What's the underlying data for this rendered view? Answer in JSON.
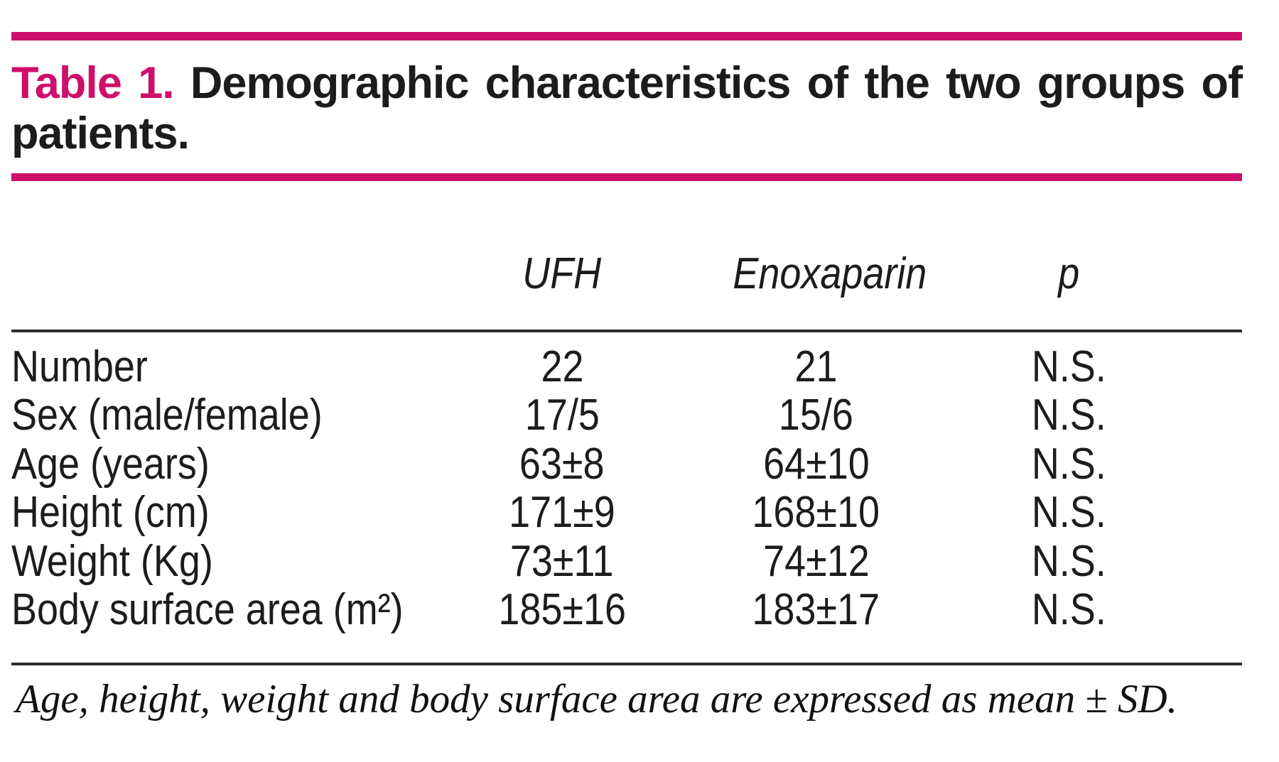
{
  "colors": {
    "accent": "#ce0f69",
    "text": "#1c1c1c",
    "rule": "#2d2d2d",
    "background": "#ffffff"
  },
  "caption": {
    "number_label": "Table 1.",
    "line1_text": "Demographic characteristics of the two groups of",
    "line2_text": "patients."
  },
  "table": {
    "columns": [
      "",
      "UFH",
      "Enoxaparin",
      "p"
    ],
    "rows": [
      {
        "label": "Number",
        "ufh": "22",
        "enoxaparin": "21",
        "p": "N.S."
      },
      {
        "label": "Sex (male/female)",
        "ufh": "17/5",
        "enoxaparin": "15/6",
        "p": "N.S."
      },
      {
        "label": "Age (years)",
        "ufh": "63±8",
        "enoxaparin": "64±10",
        "p": "N.S."
      },
      {
        "label": "Height (cm)",
        "ufh": "171±9",
        "enoxaparin": "168±10",
        "p": "N.S."
      },
      {
        "label": "Weight (Kg)",
        "ufh": "73±11",
        "enoxaparin": "74±12",
        "p": "N.S."
      },
      {
        "label": "Body surface area (m²)",
        "ufh": "185±16",
        "enoxaparin": "183±17",
        "p": "N.S."
      }
    ]
  },
  "footnote": "Age, height, weight and body surface area are expressed as mean ± SD."
}
